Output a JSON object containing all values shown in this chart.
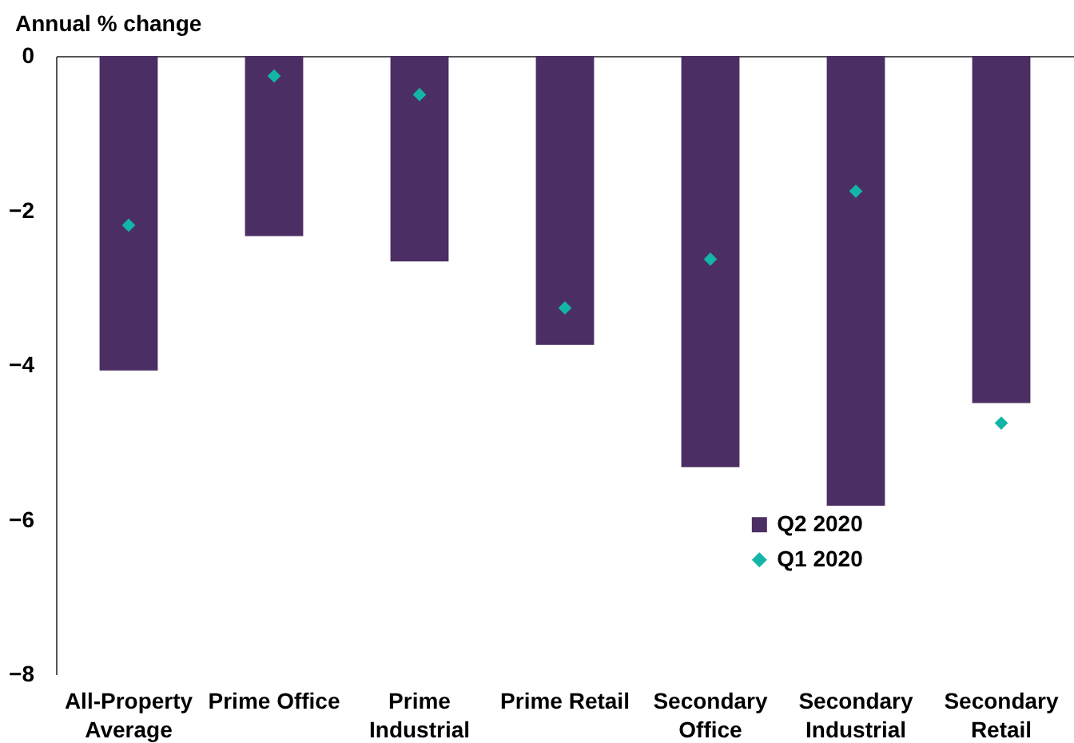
{
  "chart_data": {
    "type": "bar",
    "ylabel": "Annual % change",
    "categories": [
      "All-Property Average",
      "Prime Office",
      "Prime Industrial",
      "Prime Retail",
      "Secondary Office",
      "Secondary Industrial",
      "Secondary Retail"
    ],
    "series": [
      {
        "name": "Q2 2020",
        "color": "#4b2e63",
        "values": [
          -4.07,
          -2.33,
          -2.66,
          -3.74,
          -5.32,
          -5.82,
          -4.49
        ]
      },
      {
        "name": "Q1 2020",
        "type": "scatter",
        "marker": "diamond",
        "color": "#13b5a6",
        "values": [
          -2.19,
          -0.26,
          -0.5,
          -3.26,
          -2.63,
          -1.75,
          -4.75
        ]
      }
    ],
    "ylim": [
      -8,
      0
    ],
    "yticks": [
      -8,
      -6,
      -4,
      -2,
      0
    ],
    "grid": false,
    "legend": "bottom right"
  }
}
